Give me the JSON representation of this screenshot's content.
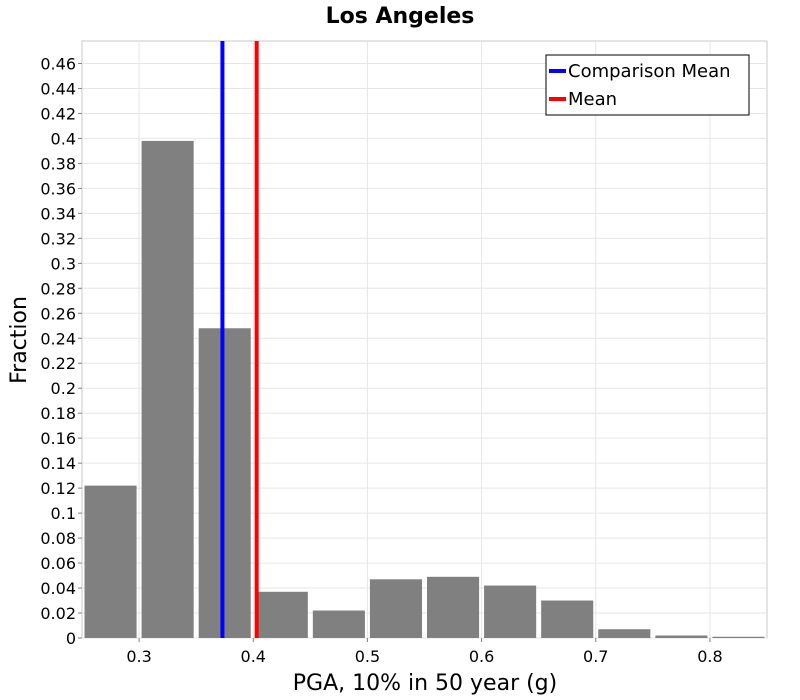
{
  "chart_data": {
    "type": "bar",
    "title": "Los Angeles",
    "xlabel": "PGA, 10% in 50 year (g)",
    "ylabel": "Fraction",
    "xlim": [
      0.25,
      0.85
    ],
    "ylim": [
      0,
      0.478
    ],
    "bin_width": 0.05,
    "x_ticks": [
      "0.3",
      "0.4",
      "0.5",
      "0.6",
      "0.7",
      "0.8"
    ],
    "y_ticks": [
      "0",
      "0.02",
      "0.04",
      "0.06",
      "0.08",
      "0.1",
      "0.12",
      "0.14",
      "0.16",
      "0.18",
      "0.2",
      "0.22",
      "0.24",
      "0.26",
      "0.28",
      "0.3",
      "0.32",
      "0.34",
      "0.36",
      "0.38",
      "0.4",
      "0.42",
      "0.44",
      "0.46"
    ],
    "bins": [
      {
        "x": 0.275,
        "value": 0.122
      },
      {
        "x": 0.325,
        "value": 0.398
      },
      {
        "x": 0.375,
        "value": 0.248
      },
      {
        "x": 0.425,
        "value": 0.037
      },
      {
        "x": 0.475,
        "value": 0.022
      },
      {
        "x": 0.525,
        "value": 0.047
      },
      {
        "x": 0.575,
        "value": 0.049
      },
      {
        "x": 0.625,
        "value": 0.042
      },
      {
        "x": 0.675,
        "value": 0.03
      },
      {
        "x": 0.725,
        "value": 0.007
      },
      {
        "x": 0.775,
        "value": 0.002
      },
      {
        "x": 0.825,
        "value": 0.001
      }
    ],
    "bar_color": "#808080",
    "grid": true,
    "vertical_lines": [
      {
        "name": "Comparison Mean",
        "x": 0.373,
        "color": "#0000ff"
      },
      {
        "name": "Mean",
        "x": 0.403,
        "color": "#ff0000"
      }
    ],
    "legend_position": "top-right"
  }
}
